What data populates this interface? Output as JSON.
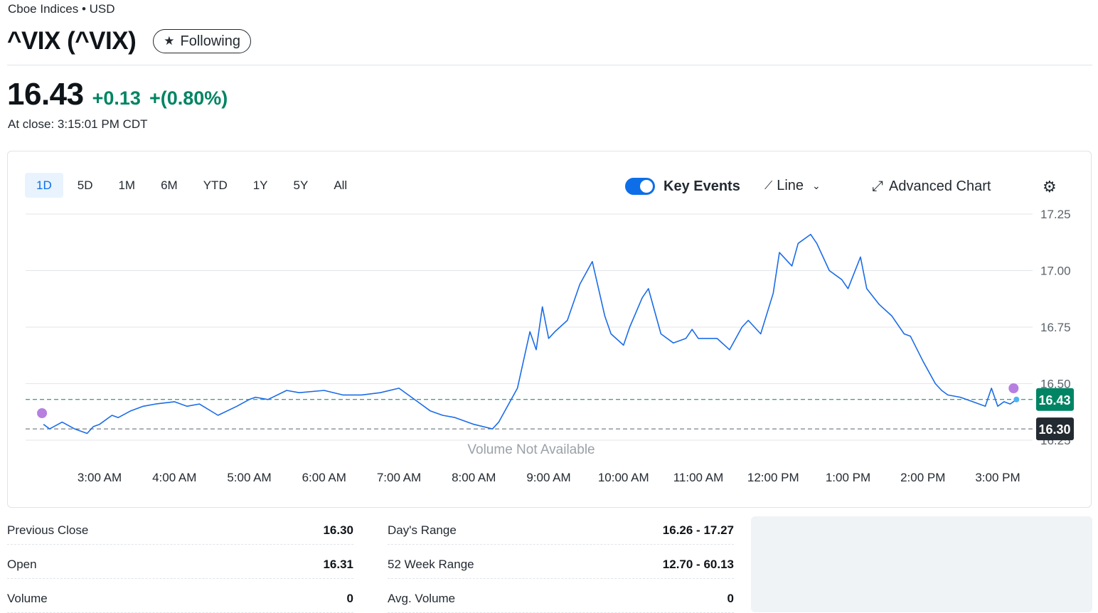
{
  "header": {
    "exchange": "Cboe Indices • USD",
    "ticker": "^VIX (^VIX)",
    "follow_label": "Following"
  },
  "quote": {
    "price": "16.43",
    "change": "+0.13",
    "change_pct": "+(0.80%)",
    "close_time": "At close: 3:15:01 PM CDT"
  },
  "controls": {
    "ranges": [
      "1D",
      "5D",
      "1M",
      "6M",
      "YTD",
      "1Y",
      "5Y",
      "All"
    ],
    "active_range": "1D",
    "key_events_label": "Key Events",
    "chart_type_label": "Line",
    "advanced_chart_label": "Advanced Chart"
  },
  "colors": {
    "line": "#1a6ce8",
    "positive": "#008463",
    "prev_close_badge": "#232a31",
    "event_dot": "#b77fe0"
  },
  "chart_data": {
    "type": "line",
    "ylim": [
      16.25,
      17.25
    ],
    "y_ticks": [
      "17.25",
      "17.00",
      "16.75",
      "16.50",
      "16.25"
    ],
    "x_ticks": [
      "3:00 AM",
      "4:00 AM",
      "5:00 AM",
      "6:00 AM",
      "7:00 AM",
      "8:00 AM",
      "9:00 AM",
      "10:00 AM",
      "11:00 AM",
      "12:00 PM",
      "1:00 PM",
      "2:00 PM",
      "3:00 PM"
    ],
    "no_volume_text": "Volume Not Available",
    "current_price_label": "16.43",
    "previous_close_label": "16.30",
    "current_price": 16.43,
    "previous_close": 16.3,
    "series": [
      {
        "x": [
          "2:15 AM",
          "2:20 AM",
          "2:30 AM",
          "2:40 AM",
          "2:50 AM",
          "2:55 AM",
          "3:00 AM",
          "3:10 AM",
          "3:15 AM",
          "3:25 AM",
          "3:35 AM",
          "3:45 AM",
          "4:00 AM",
          "4:10 AM",
          "4:20 AM",
          "4:35 AM",
          "4:50 AM",
          "5:00 AM",
          "5:05 AM",
          "5:15 AM",
          "5:30 AM",
          "5:40 AM",
          "6:00 AM",
          "6:15 AM",
          "6:30 AM",
          "6:45 AM",
          "7:00 AM",
          "7:15 AM",
          "7:25 AM",
          "7:35 AM",
          "7:45 AM",
          "8:00 AM",
          "8:15 AM",
          "8:20 AM",
          "8:35 AM",
          "8:45 AM",
          "8:50 AM",
          "8:55 AM",
          "9:00 AM",
          "9:05 AM",
          "9:15 AM",
          "9:25 AM",
          "9:35 AM",
          "9:45 AM",
          "9:50 AM",
          "10:00 AM",
          "10:05 AM",
          "10:15 AM",
          "10:20 AM",
          "10:30 AM",
          "10:40 AM",
          "10:50 AM",
          "10:55 AM",
          "11:00 AM",
          "11:15 AM",
          "11:25 AM",
          "11:35 AM",
          "11:40 AM",
          "11:50 AM",
          "12:00 PM",
          "12:05 PM",
          "12:15 PM",
          "12:20 PM",
          "12:30 PM",
          "12:35 PM",
          "12:45 PM",
          "12:55 PM",
          "1:00 PM",
          "1:10 PM",
          "1:15 PM",
          "1:25 PM",
          "1:35 PM",
          "1:45 PM",
          "1:50 PM",
          "2:00 PM",
          "2:10 PM",
          "2:15 PM",
          "2:20 PM",
          "2:30 PM",
          "2:40 PM",
          "2:50 PM",
          "2:55 PM",
          "3:00 PM",
          "3:05 PM",
          "3:10 PM",
          "3:15 PM"
        ],
        "values": [
          16.32,
          16.3,
          16.33,
          16.3,
          16.28,
          16.31,
          16.32,
          16.36,
          16.35,
          16.38,
          16.4,
          16.41,
          16.42,
          16.4,
          16.41,
          16.36,
          16.4,
          16.43,
          16.44,
          16.43,
          16.47,
          16.46,
          16.47,
          16.45,
          16.45,
          16.46,
          16.48,
          16.42,
          16.38,
          16.36,
          16.35,
          16.32,
          16.3,
          16.33,
          16.48,
          16.73,
          16.65,
          16.84,
          16.7,
          16.73,
          16.78,
          16.94,
          17.04,
          16.8,
          16.72,
          16.67,
          16.75,
          16.88,
          16.92,
          16.72,
          16.68,
          16.7,
          16.74,
          16.7,
          16.7,
          16.65,
          16.75,
          16.78,
          16.72,
          16.9,
          17.08,
          17.02,
          17.12,
          17.16,
          17.12,
          17.0,
          16.96,
          16.92,
          17.06,
          16.92,
          16.85,
          16.8,
          16.72,
          16.71,
          16.6,
          16.5,
          16.47,
          16.45,
          16.44,
          16.42,
          16.4,
          16.48,
          16.4,
          16.42,
          16.41,
          16.43
        ]
      }
    ],
    "event_markers": [
      "2:15 AM",
      "3:15 PM"
    ]
  },
  "stats": {
    "left": [
      {
        "label": "Previous Close",
        "value": "16.30"
      },
      {
        "label": "Open",
        "value": "16.31"
      },
      {
        "label": "Volume",
        "value": "0"
      }
    ],
    "right": [
      {
        "label": "Day's Range",
        "value": "16.26 - 17.27"
      },
      {
        "label": "52 Week Range",
        "value": "12.70 - 60.13"
      },
      {
        "label": "Avg. Volume",
        "value": "0"
      }
    ]
  }
}
